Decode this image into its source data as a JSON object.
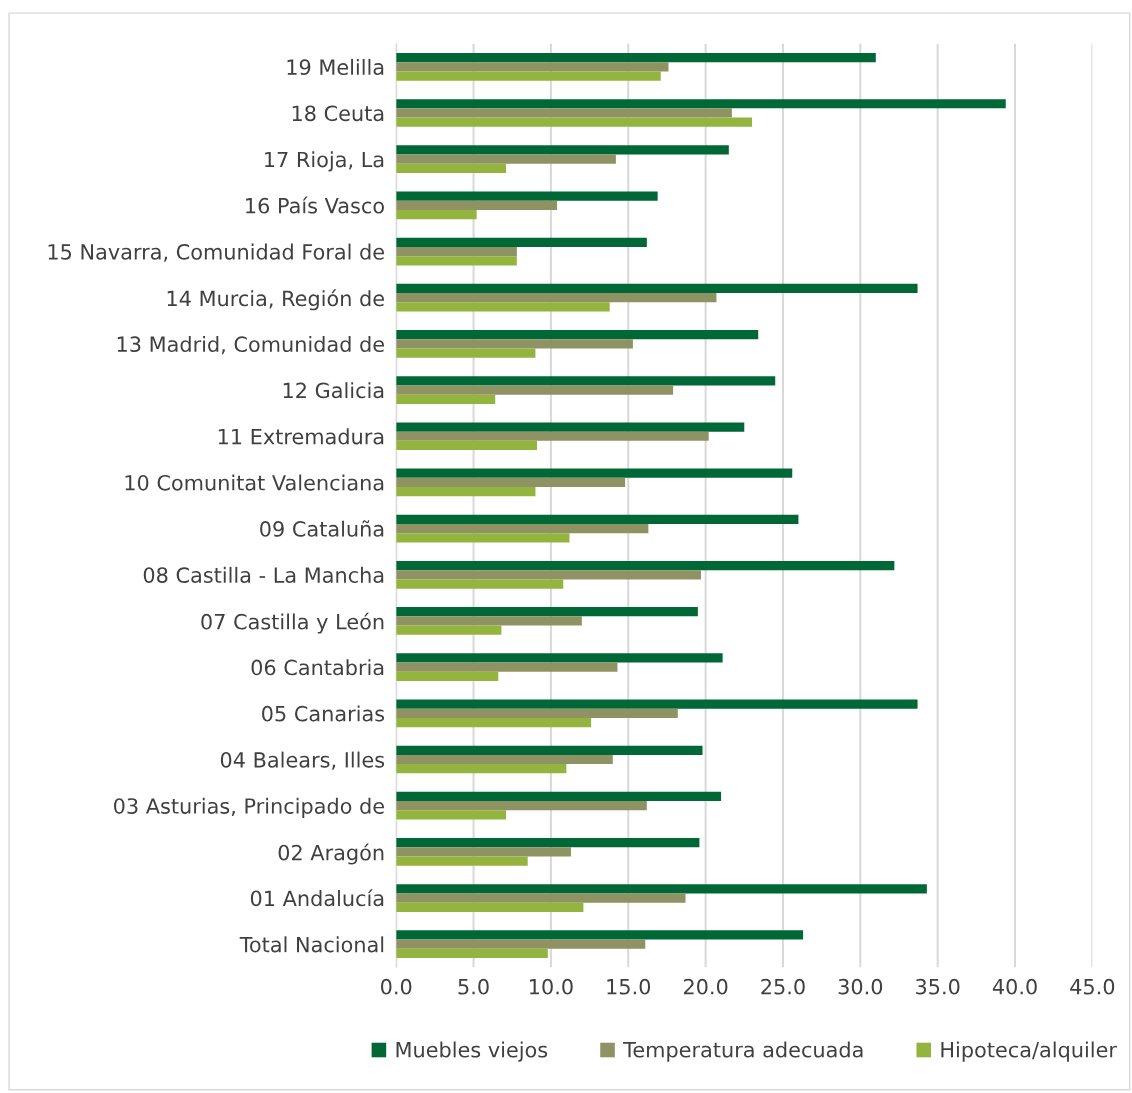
{
  "chart_data": {
    "type": "bar",
    "orientation": "horizontal",
    "categories": [
      "19 Melilla",
      "18 Ceuta",
      "17 Rioja, La",
      "16 País Vasco",
      "15 Navarra, Comunidad Foral de",
      "14 Murcia, Región de",
      "13 Madrid, Comunidad de",
      "12 Galicia",
      "11 Extremadura",
      "10 Comunitat Valenciana",
      "09 Cataluña",
      "08 Castilla - La Mancha",
      "07 Castilla y León",
      "06 Cantabria",
      "05 Canarias",
      "04 Balears, Illes",
      "03 Asturias, Principado de",
      "02 Aragón",
      "01 Andalucía",
      "Total Nacional"
    ],
    "series": [
      {
        "name": "Muebles viejos",
        "color": "#006837",
        "values": [
          31.0,
          39.4,
          21.5,
          16.9,
          16.2,
          33.7,
          23.4,
          24.5,
          22.5,
          25.6,
          26.0,
          32.2,
          19.5,
          21.1,
          33.7,
          19.8,
          21.0,
          19.6,
          34.3,
          26.3
        ]
      },
      {
        "name": "Temperatura adecuada",
        "color": "#8f9262",
        "values": [
          17.6,
          21.7,
          14.2,
          10.4,
          7.8,
          20.7,
          15.3,
          17.9,
          20.2,
          14.8,
          16.3,
          19.7,
          12.0,
          14.3,
          18.2,
          14.0,
          16.2,
          11.3,
          18.7,
          16.1
        ]
      },
      {
        "name": "Hipoteca/alquiler",
        "color": "#93b53f",
        "values": [
          17.1,
          23.0,
          7.1,
          5.2,
          7.8,
          13.8,
          9.0,
          6.4,
          9.1,
          9.0,
          11.2,
          10.8,
          6.8,
          6.6,
          12.6,
          11.0,
          7.1,
          8.5,
          12.1,
          9.8
        ]
      }
    ],
    "xlim": [
      0,
      45
    ],
    "xticks": [
      {
        "value": 0,
        "label": "0.0"
      },
      {
        "value": 5,
        "label": "5.0"
      },
      {
        "value": 10,
        "label": "10.0"
      },
      {
        "value": 15,
        "label": "15.0"
      },
      {
        "value": 20,
        "label": "20.0"
      },
      {
        "value": 25,
        "label": "25.0"
      },
      {
        "value": 30,
        "label": "30.0"
      },
      {
        "value": 35,
        "label": "35.0"
      },
      {
        "value": 40,
        "label": "40.0"
      },
      {
        "value": 45,
        "label": "45.0"
      }
    ],
    "grid": "x",
    "legend": "bottom"
  }
}
